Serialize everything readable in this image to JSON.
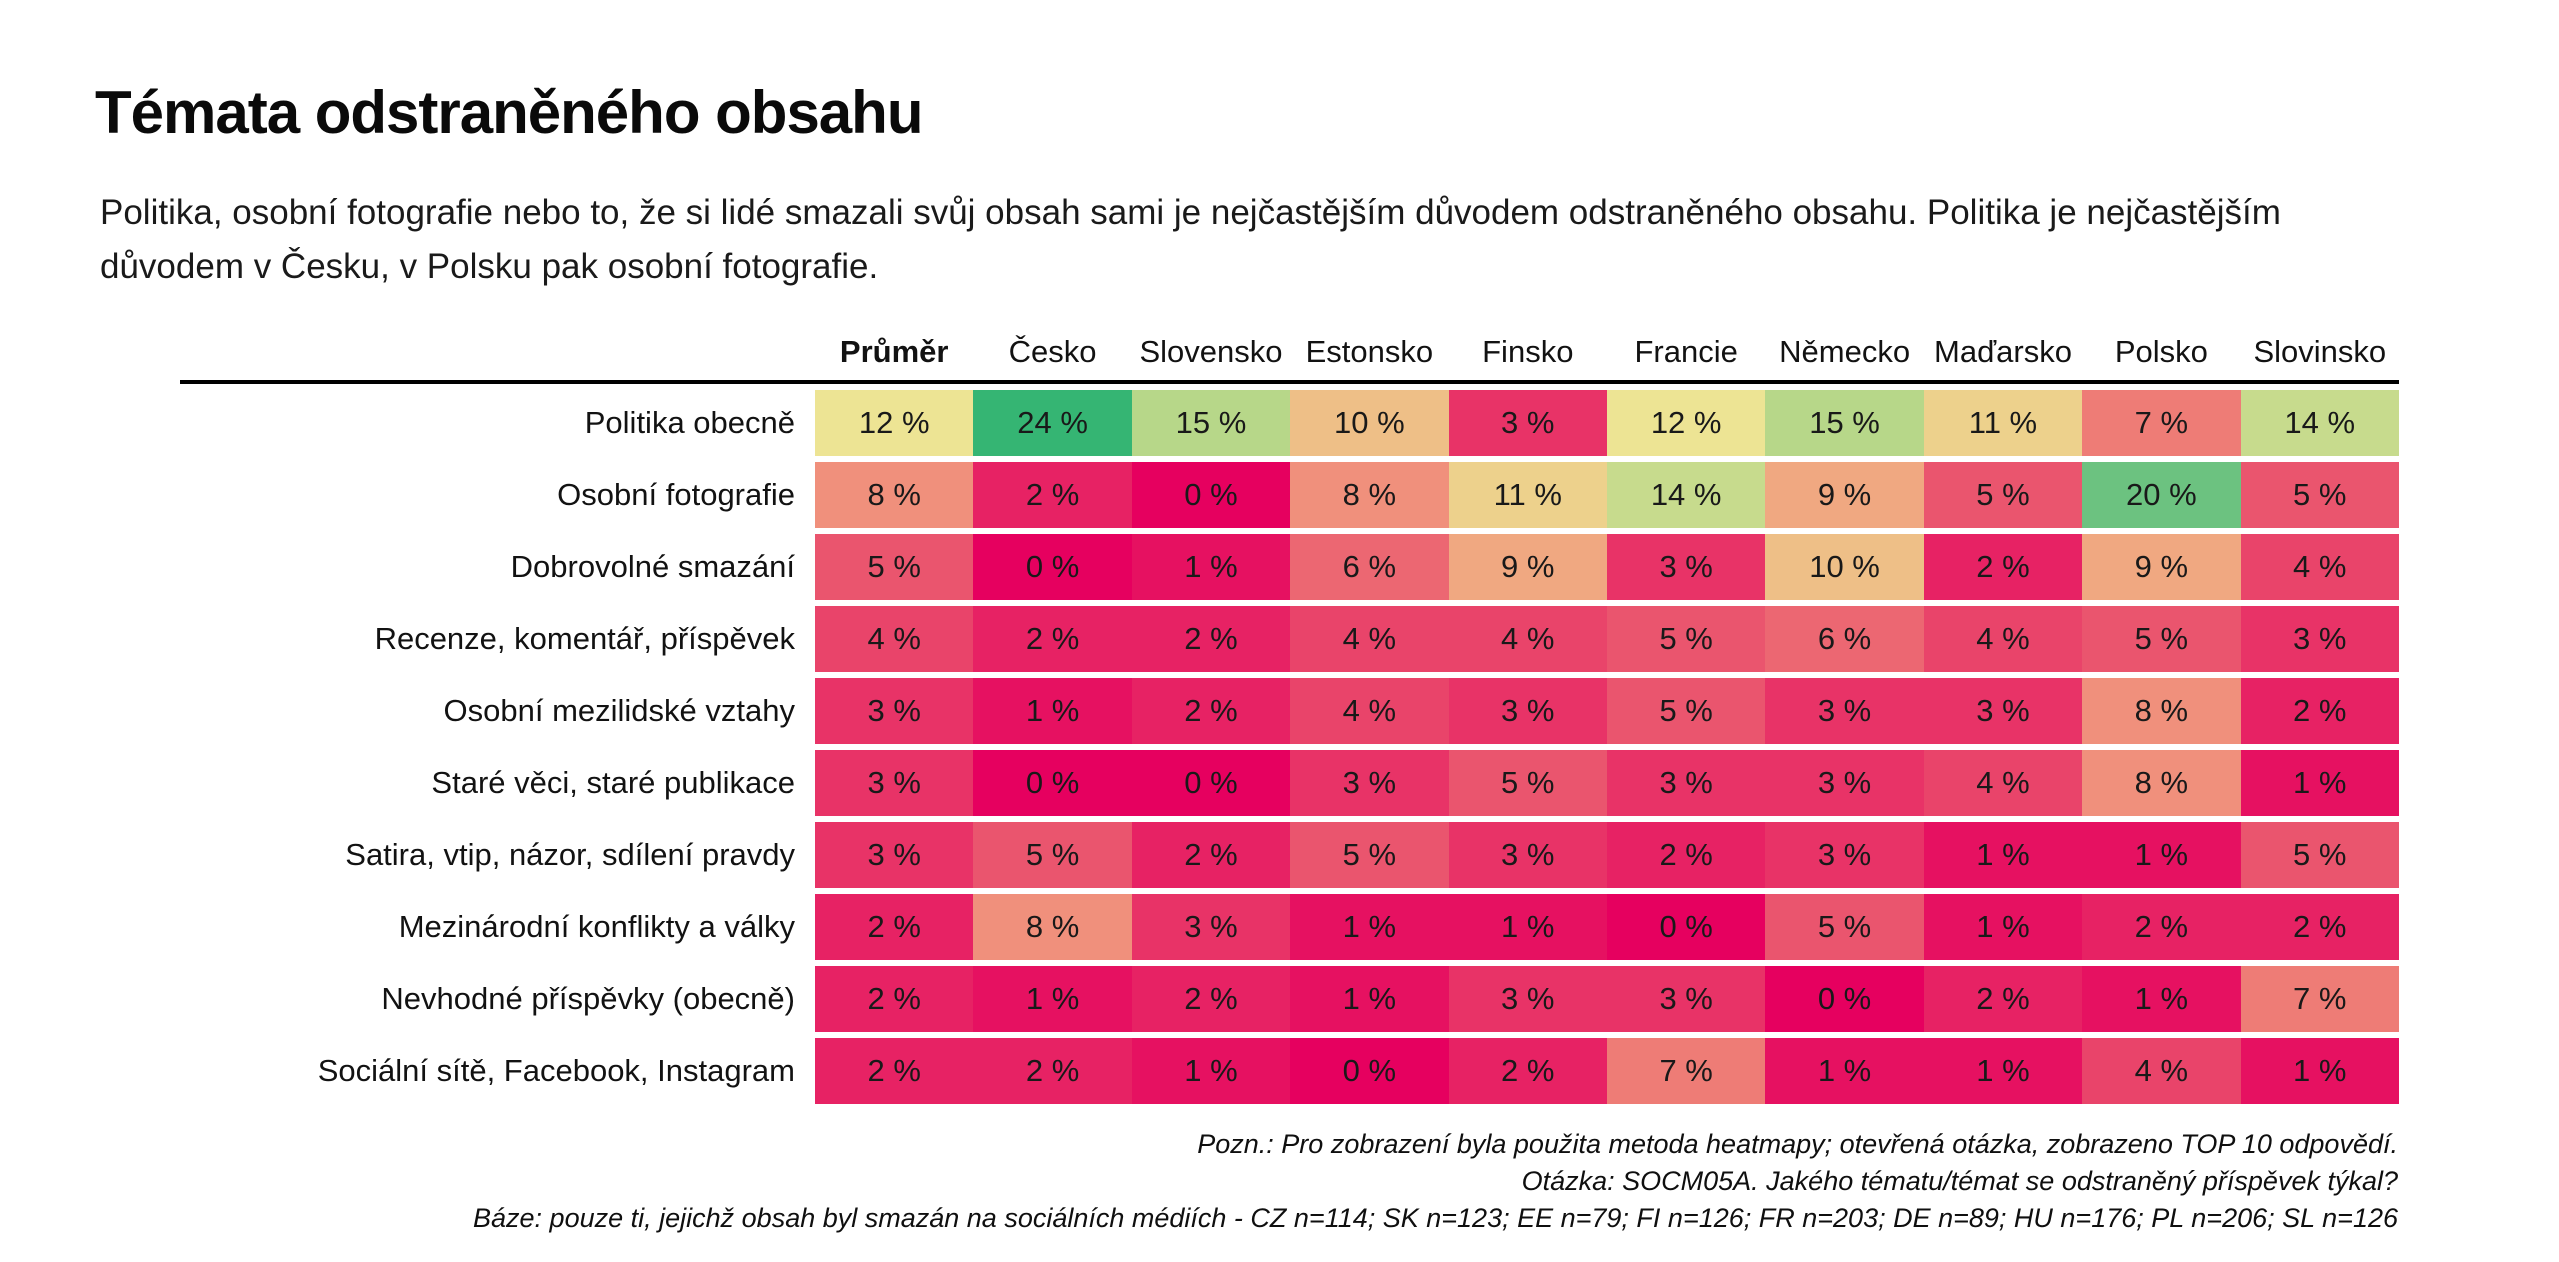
{
  "header": {
    "title": "Témata odstraněného obsahu",
    "subtitle": "Politika, osobní fotografie nebo to, že si lidé smazali svůj obsah sami je nejčastějším důvodem odstraněného obsahu. Politika je nejčastějším důvodem v Česku, v Polsku pak osobní fotografie."
  },
  "chart_data": {
    "type": "heatmap",
    "title": "Témata odstraněného obsahu",
    "unit": "%",
    "value_format": "{value} %",
    "legend_position": "none",
    "columns": [
      "Průměr",
      "Česko",
      "Slovensko",
      "Estonsko",
      "Finsko",
      "Francie",
      "Německo",
      "Maďarsko",
      "Polsko",
      "Slovinsko"
    ],
    "bold_column": "Průměr",
    "rows": [
      {
        "label": "Politika obecně",
        "values": [
          12,
          24,
          15,
          10,
          3,
          12,
          15,
          11,
          7,
          14
        ]
      },
      {
        "label": "Osobní fotografie",
        "values": [
          8,
          2,
          0,
          8,
          11,
          14,
          9,
          5,
          20,
          5
        ]
      },
      {
        "label": "Dobrovolné smazání",
        "values": [
          5,
          0,
          1,
          6,
          9,
          3,
          10,
          2,
          9,
          4
        ]
      },
      {
        "label": "Recenze, komentář, příspěvek",
        "values": [
          4,
          2,
          2,
          4,
          4,
          5,
          6,
          4,
          5,
          3
        ]
      },
      {
        "label": "Osobní mezilidské vztahy",
        "values": [
          3,
          1,
          2,
          4,
          3,
          5,
          3,
          3,
          8,
          2
        ]
      },
      {
        "label": "Staré věci, staré publikace",
        "values": [
          3,
          0,
          0,
          3,
          5,
          3,
          3,
          4,
          8,
          1
        ]
      },
      {
        "label": "Satira, vtip, názor, sdílení pravdy",
        "values": [
          3,
          5,
          2,
          5,
          3,
          2,
          3,
          1,
          1,
          5
        ]
      },
      {
        "label": "Mezinárodní konflikty a války",
        "values": [
          2,
          8,
          3,
          1,
          1,
          0,
          5,
          1,
          2,
          2
        ]
      },
      {
        "label": "Nevhodné příspěvky (obecně)",
        "values": [
          2,
          1,
          2,
          1,
          3,
          3,
          0,
          2,
          1,
          7
        ]
      },
      {
        "label": "Sociální sítě, Facebook, Instagram",
        "values": [
          2,
          2,
          1,
          0,
          2,
          7,
          1,
          1,
          4,
          1
        ]
      }
    ],
    "color_scale": {
      "0": "#E6005F",
      "1": "#E61161",
      "2": "#E72264",
      "3": "#E83367",
      "4": "#E9446A",
      "5": "#EA556E",
      "6": "#EC6772",
      "7": "#EE7C76",
      "8": "#F0907C",
      "9": "#F0A881",
      "10": "#EEBF87",
      "11": "#EDD18C",
      "12": "#EDE494",
      "14": "#C7DB8D",
      "15": "#B7D789",
      "20": "#6CC280",
      "24": "#35B573"
    }
  },
  "notes": {
    "line1": "Pozn.: Pro zobrazení byla použita metoda heatmapy; otevřená otázka, zobrazeno TOP 10 odpovědí.",
    "line2": "Otázka: SOCM05A. Jakého tématu/témat se odstraněný příspěvek týkal?",
    "line3": "Báze: pouze ti, jejichž obsah byl smazán na sociálních médiích - CZ n=114; SK n=123; EE n=79; FI n=126; FR n=203; DE n=89; HU n=176; PL n=206; SL n=126"
  }
}
